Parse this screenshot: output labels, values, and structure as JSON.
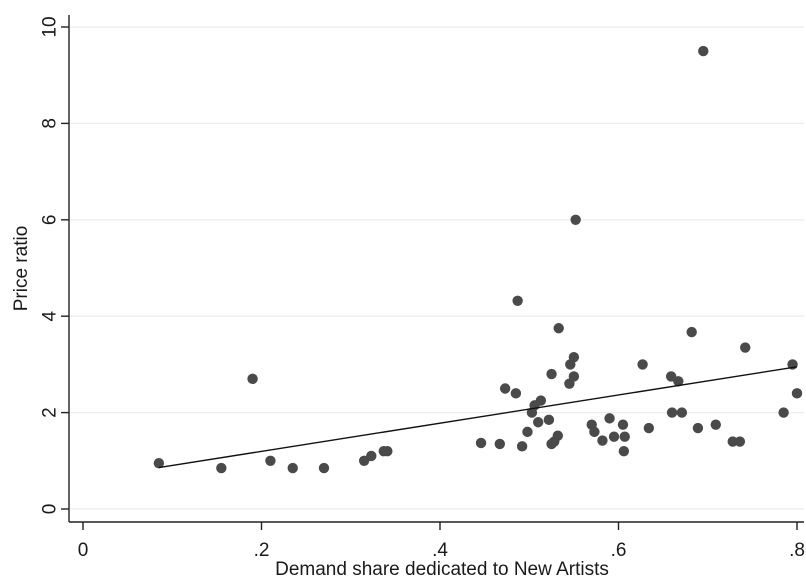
{
  "chart_data": {
    "type": "scatter",
    "xlabel": "Demand share dedicated to New Artists",
    "ylabel": "Price ratio",
    "xlim": [
      0,
      0.8
    ],
    "ylim": [
      0,
      10
    ],
    "x_ticks": [
      0,
      0.2,
      0.4,
      0.6,
      0.8
    ],
    "x_tick_labels": [
      "0",
      ".2",
      ".4",
      ".6",
      ".8"
    ],
    "y_ticks": [
      0,
      2,
      4,
      6,
      8,
      10
    ],
    "y_tick_labels": [
      "0",
      "2",
      "4",
      "6",
      "8",
      "10"
    ],
    "grid": "horizontal",
    "points": [
      [
        0.085,
        0.95
      ],
      [
        0.155,
        0.85
      ],
      [
        0.19,
        2.7
      ],
      [
        0.21,
        1.0
      ],
      [
        0.235,
        0.85
      ],
      [
        0.27,
        0.85
      ],
      [
        0.315,
        1.0
      ],
      [
        0.323,
        1.1
      ],
      [
        0.337,
        1.2
      ],
      [
        0.341,
        1.2
      ],
      [
        0.446,
        1.37
      ],
      [
        0.467,
        1.35
      ],
      [
        0.473,
        2.5
      ],
      [
        0.485,
        2.4
      ],
      [
        0.487,
        4.32
      ],
      [
        0.492,
        1.3
      ],
      [
        0.498,
        1.6
      ],
      [
        0.503,
        2.0
      ],
      [
        0.506,
        2.15
      ],
      [
        0.51,
        1.8
      ],
      [
        0.513,
        2.25
      ],
      [
        0.522,
        1.85
      ],
      [
        0.525,
        2.8
      ],
      [
        0.525,
        1.35
      ],
      [
        0.528,
        1.4
      ],
      [
        0.532,
        1.52
      ],
      [
        0.533,
        3.75
      ],
      [
        0.545,
        2.6
      ],
      [
        0.546,
        3.0
      ],
      [
        0.55,
        2.75
      ],
      [
        0.55,
        3.15
      ],
      [
        0.552,
        6.0
      ],
      [
        0.57,
        1.75
      ],
      [
        0.573,
        1.6
      ],
      [
        0.582,
        1.42
      ],
      [
        0.59,
        1.88
      ],
      [
        0.595,
        1.5
      ],
      [
        0.605,
        1.75
      ],
      [
        0.606,
        1.2
      ],
      [
        0.607,
        1.5
      ],
      [
        0.627,
        3.0
      ],
      [
        0.634,
        1.68
      ],
      [
        0.659,
        2.75
      ],
      [
        0.66,
        2.0
      ],
      [
        0.667,
        2.65
      ],
      [
        0.671,
        2.0
      ],
      [
        0.682,
        3.67
      ],
      [
        0.689,
        1.68
      ],
      [
        0.695,
        9.5
      ],
      [
        0.709,
        1.75
      ],
      [
        0.728,
        1.4
      ],
      [
        0.736,
        1.4
      ],
      [
        0.742,
        3.35
      ],
      [
        0.785,
        2.0
      ],
      [
        0.795,
        3.0
      ],
      [
        0.8,
        2.4
      ]
    ],
    "fit_line": {
      "x": [
        0.085,
        0.8
      ],
      "y": [
        0.86,
        2.95
      ]
    }
  }
}
